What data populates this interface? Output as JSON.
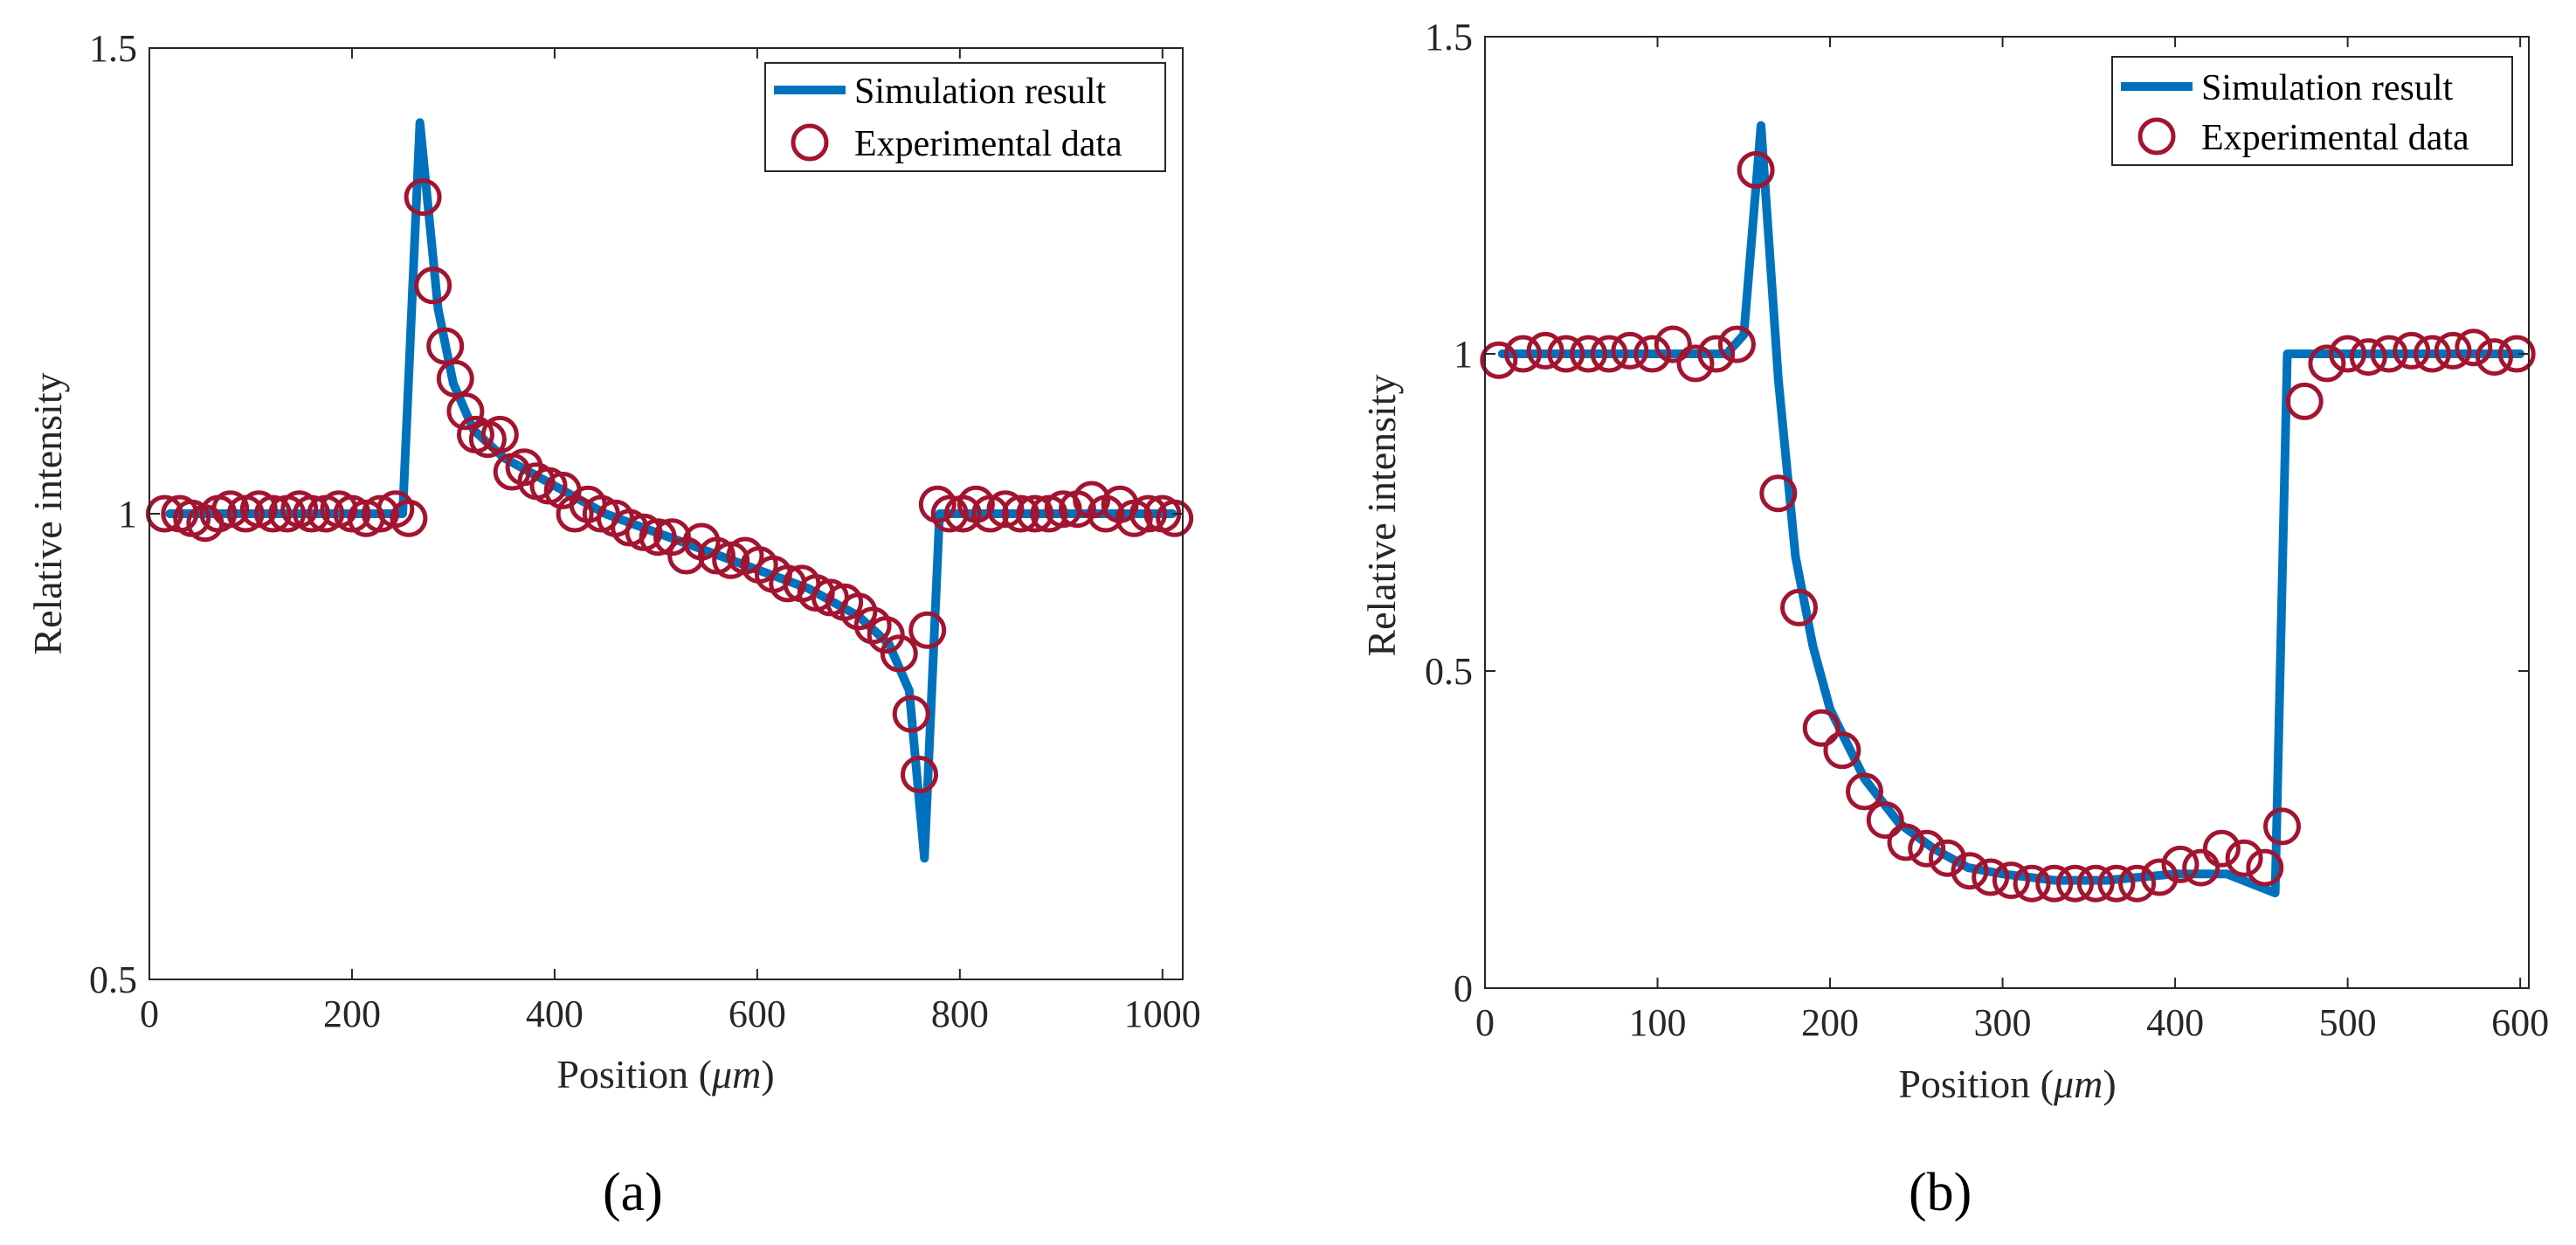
{
  "chart_data": [
    {
      "type": "line",
      "panel_label": "(a)",
      "title": "",
      "xlabel_prefix": "Position (",
      "xlabel_unit": "μm",
      "xlabel_suffix": ")",
      "ylabel": "Relative intensity",
      "xlim": [
        0,
        1020
      ],
      "ylim": [
        0.5,
        1.5
      ],
      "xticks": [
        0,
        200,
        400,
        600,
        800,
        1000
      ],
      "yticks": [
        0.5,
        1,
        1.5
      ],
      "ytick_labels": [
        "0.5",
        "1",
        "1.5"
      ],
      "legend": {
        "position": "top-right",
        "entries": [
          "Simulation result",
          "Experimental data"
        ]
      },
      "series": [
        {
          "name": "Simulation result",
          "style": "line",
          "color": "#0072BD",
          "x": [
            20,
            100,
            200,
            250,
            267,
            285,
            300,
            320,
            350,
            400,
            450,
            500,
            550,
            600,
            650,
            700,
            730,
            750,
            765,
            780,
            800,
            1010
          ],
          "y": [
            1.0,
            1.0,
            1.0,
            1.0,
            1.42,
            1.22,
            1.14,
            1.09,
            1.06,
            1.03,
            1.0,
            0.98,
            0.96,
            0.94,
            0.92,
            0.89,
            0.86,
            0.81,
            0.63,
            1.0,
            1.0,
            1.0
          ]
        },
        {
          "name": "Experimental data",
          "style": "marker",
          "color": "#A2142F",
          "x": [
            15,
            30,
            42,
            55,
            68,
            80,
            95,
            108,
            122,
            136,
            148,
            160,
            174,
            187,
            200,
            214,
            228,
            243,
            256,
            270,
            280,
            292,
            302,
            312,
            322,
            334,
            346,
            358,
            370,
            382,
            394,
            408,
            420,
            433,
            446,
            460,
            474,
            488,
            502,
            516,
            530,
            545,
            560,
            574,
            588,
            602,
            616,
            630,
            644,
            658,
            672,
            686,
            700,
            714,
            727,
            740,
            752,
            760,
            768,
            778,
            790,
            803,
            816,
            830,
            845,
            860,
            874,
            888,
            902,
            916,
            930,
            944,
            958,
            972,
            986,
            1000,
            1012
          ],
          "y": [
            1.0,
            1.0,
            0.995,
            0.99,
            1.0,
            1.005,
            1.0,
            1.005,
            1.0,
            1.0,
            1.005,
            1.0,
            1.0,
            1.005,
            1.0,
            0.995,
            1.0,
            1.005,
            0.995,
            1.34,
            1.245,
            1.18,
            1.145,
            1.11,
            1.085,
            1.08,
            1.085,
            1.045,
            1.05,
            1.035,
            1.03,
            1.025,
            1.0,
            1.01,
            1.0,
            0.995,
            0.985,
            0.98,
            0.975,
            0.975,
            0.955,
            0.97,
            0.955,
            0.95,
            0.955,
            0.945,
            0.935,
            0.925,
            0.925,
            0.915,
            0.91,
            0.905,
            0.895,
            0.88,
            0.87,
            0.85,
            0.785,
            0.72,
            0.875,
            1.01,
            1.0,
            1.0,
            1.01,
            1.0,
            1.005,
            1.0,
            1.0,
            1.0,
            1.005,
            1.005,
            1.015,
            1.0,
            1.01,
            0.995,
            1.0,
            1.0,
            0.995
          ]
        }
      ]
    },
    {
      "type": "line",
      "panel_label": "(b)",
      "title": "",
      "xlabel_prefix": "Position (",
      "xlabel_unit": "μm",
      "xlabel_suffix": ")",
      "ylabel": "Relative intensity",
      "xlim": [
        0,
        605
      ],
      "ylim": [
        0,
        1.5
      ],
      "xticks": [
        0,
        100,
        200,
        300,
        400,
        500,
        600
      ],
      "yticks": [
        0,
        0.5,
        1,
        1.5
      ],
      "ytick_labels": [
        "0",
        "0.5",
        "1",
        "1.5"
      ],
      "legend": {
        "position": "top-right",
        "entries": [
          "Simulation result",
          "Experimental data"
        ]
      },
      "series": [
        {
          "name": "Simulation result",
          "style": "line",
          "color": "#0072BD",
          "x": [
            10,
            50,
            100,
            140,
            150,
            160,
            170,
            180,
            190,
            200,
            220,
            240,
            260,
            280,
            300,
            330,
            360,
            400,
            430,
            458,
            465,
            475,
            500,
            600
          ],
          "y": [
            1.0,
            1.0,
            1.0,
            1.0,
            1.03,
            1.36,
            0.96,
            0.68,
            0.54,
            0.44,
            0.33,
            0.26,
            0.22,
            0.19,
            0.18,
            0.17,
            0.17,
            0.18,
            0.18,
            0.15,
            1.0,
            1.0,
            1.0,
            1.0
          ]
        },
        {
          "name": "Experimental data",
          "style": "marker",
          "color": "#A2142F",
          "x": [
            8,
            22,
            35,
            47,
            60,
            72,
            84,
            97,
            109,
            122,
            134,
            146,
            157,
            170,
            182,
            195,
            207,
            220,
            232,
            244,
            256,
            268,
            281,
            293,
            305,
            317,
            330,
            342,
            354,
            366,
            378,
            391,
            403,
            415,
            427,
            440,
            452,
            462,
            475,
            488,
            500,
            512,
            524,
            537,
            549,
            561,
            573,
            585,
            598
          ],
          "y": [
            0.99,
            1.0,
            1.005,
            1.0,
            1.0,
            1.0,
            1.005,
            1.0,
            1.015,
            0.985,
            1.0,
            1.015,
            1.29,
            0.78,
            0.6,
            0.41,
            0.375,
            0.31,
            0.265,
            0.23,
            0.22,
            0.205,
            0.185,
            0.175,
            0.17,
            0.165,
            0.165,
            0.165,
            0.165,
            0.165,
            0.165,
            0.175,
            0.195,
            0.19,
            0.22,
            0.205,
            0.19,
            0.255,
            0.925,
            0.985,
            1.0,
            0.995,
            1.0,
            1.005,
            1.0,
            1.005,
            1.01,
            0.995,
            1.0
          ]
        }
      ]
    }
  ]
}
